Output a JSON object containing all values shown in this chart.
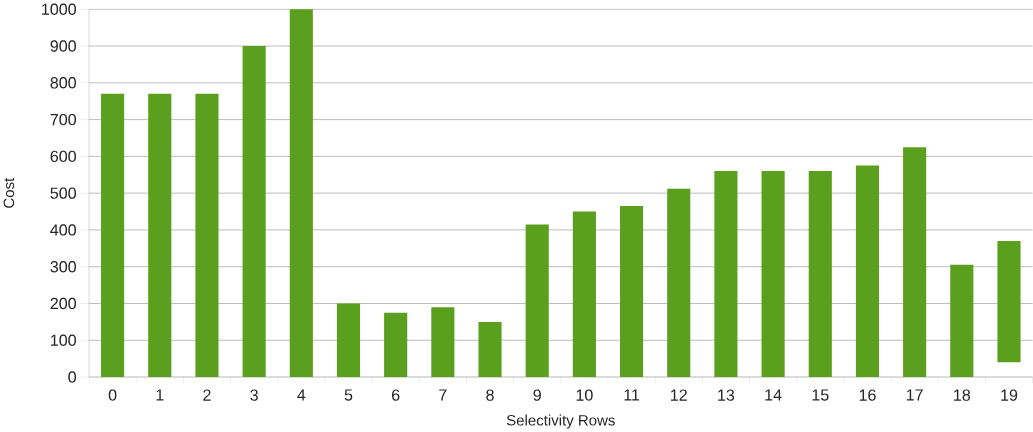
{
  "chart_data": {
    "type": "bar",
    "xlabel": "Selectivity Rows",
    "ylabel": "Cost",
    "categories": [
      "0",
      "1",
      "2",
      "3",
      "4",
      "5",
      "6",
      "7",
      "8",
      "9",
      "10",
      "11",
      "12",
      "13",
      "14",
      "15",
      "16",
      "17",
      "18",
      "19"
    ],
    "values": [
      770,
      770,
      770,
      900,
      1000,
      200,
      175,
      190,
      150,
      415,
      450,
      465,
      512,
      560,
      560,
      560,
      575,
      625,
      305,
      330
    ],
    "base": [
      0,
      0,
      0,
      0,
      0,
      0,
      0,
      0,
      0,
      0,
      0,
      0,
      0,
      0,
      0,
      0,
      0,
      0,
      0,
      40
    ],
    "color": "#5aa01e",
    "ylim": [
      0,
      1000
    ],
    "yticks": [
      0,
      100,
      200,
      300,
      400,
      500,
      600,
      700,
      800,
      900,
      1000
    ],
    "grid": "y"
  }
}
